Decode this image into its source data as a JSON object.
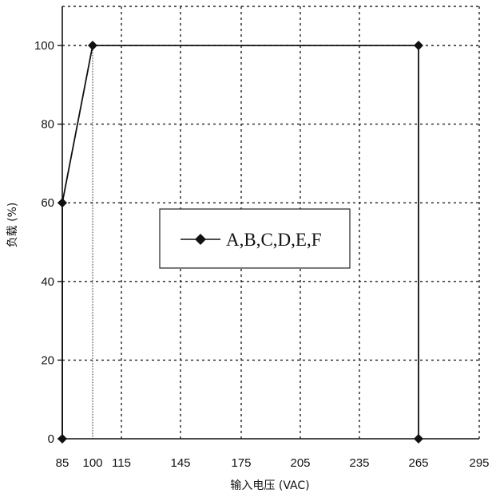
{
  "chart_data": {
    "type": "line",
    "title": "",
    "xlabel": "输入电压 (VAC)",
    "ylabel": "负载 (%)",
    "xlim": [
      85,
      295
    ],
    "ylim": [
      0,
      110
    ],
    "x_ticks": [
      85,
      100,
      115,
      145,
      175,
      205,
      235,
      265,
      295
    ],
    "y_ticks": [
      0,
      20,
      40,
      60,
      80,
      100
    ],
    "grid": true,
    "grid_style": "dashed",
    "legend_position": "center",
    "series": [
      {
        "name": "A,B,C,D,E,F",
        "color": "#111111",
        "marker": "diamond",
        "points": [
          [
            85,
            0
          ],
          [
            85,
            60
          ],
          [
            100,
            100
          ],
          [
            265,
            100
          ],
          [
            265,
            0
          ]
        ]
      }
    ]
  }
}
